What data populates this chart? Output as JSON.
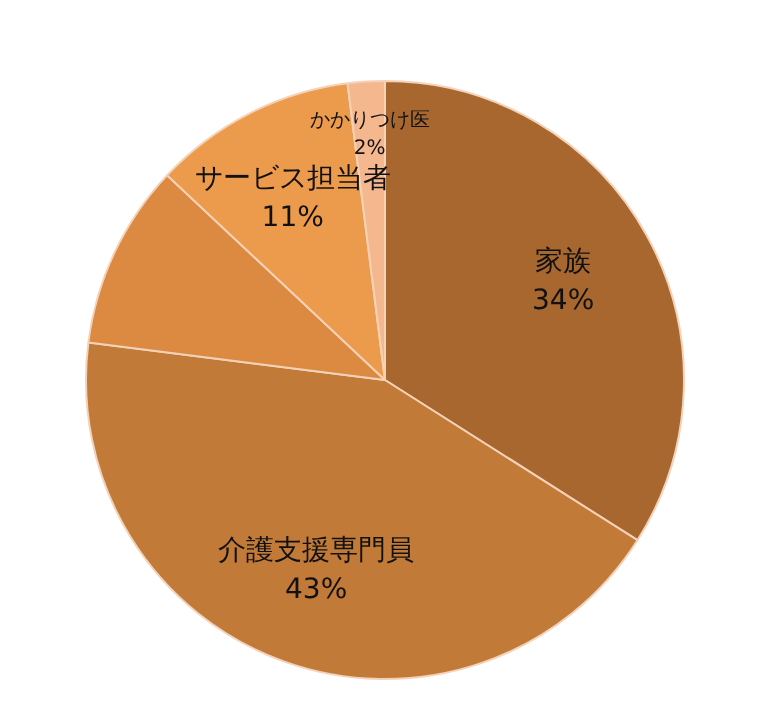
{
  "chart_data": {
    "type": "pie",
    "categories": [
      "家族",
      "介護支援専門員",
      null,
      "サービス担当者",
      "かかりつけ医"
    ],
    "values": [
      34,
      43,
      10,
      11,
      2
    ],
    "colors": [
      "#a8672f",
      "#c27a38",
      "#dc8a42",
      "#ec9a4c",
      "#f5b88e"
    ],
    "value_labels": [
      "34%",
      "43%",
      null,
      "11%",
      "2%"
    ],
    "legend": false
  }
}
